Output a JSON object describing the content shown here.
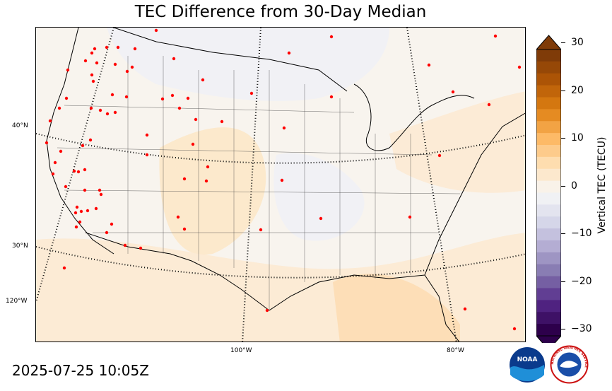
{
  "title": "TEC Difference from 30-Day Median",
  "timestamp": "2025-07-25 10:05Z",
  "latitude_labels": [
    "40°N",
    "30°N",
    "120°W"
  ],
  "longitude_labels": [
    "100°W",
    "80°W"
  ],
  "colorbar": {
    "label": "Vertical TEC (TECU)",
    "ticks": [
      "30",
      "20",
      "10",
      "0",
      "−10",
      "−20",
      "−30"
    ],
    "tick_values": [
      30,
      20,
      10,
      0,
      -10,
      -20,
      -30
    ],
    "range": [
      -30,
      30
    ],
    "colors_top_to_bottom": [
      "#7f3b08",
      "#b35806",
      "#e08214",
      "#fdb863",
      "#fee0b6",
      "#f7f7f7",
      "#d8daeb",
      "#b2abd2",
      "#8073ac",
      "#542788",
      "#2d004b"
    ]
  },
  "logos": {
    "noaa": "NOAA",
    "nws": "NATIONAL WEATHER SERVICE"
  },
  "colors": {
    "station_marker": "#ff0000",
    "background_field": "#f8f4ee",
    "neutral_field": "#f2f2f4",
    "positive_field": "#fde8cc"
  },
  "legend_icons": [
    "noaa-logo",
    "nws-logo"
  ]
}
